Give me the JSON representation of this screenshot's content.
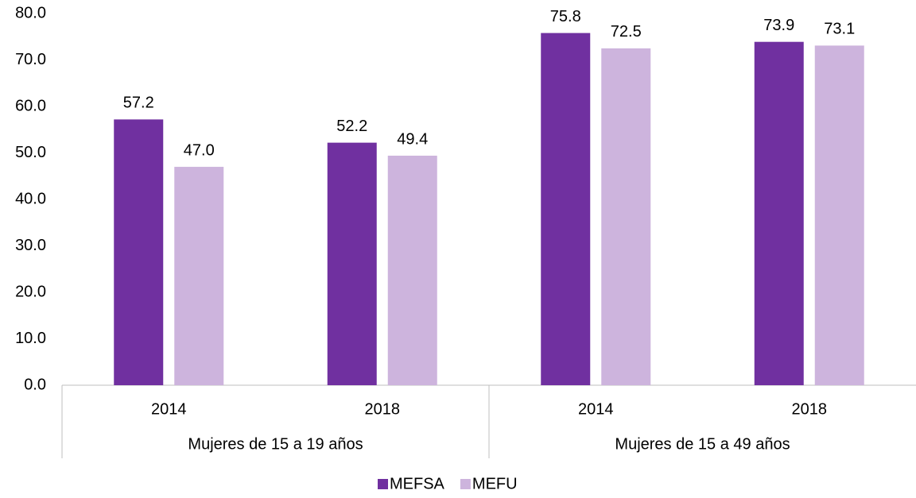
{
  "chart_data": {
    "type": "bar",
    "groups": [
      {
        "name": "Mujeres de 15 a 19 años",
        "categories": [
          "2014",
          "2018"
        ]
      },
      {
        "name": "Mujeres de 15 a 49 años",
        "categories": [
          "2014",
          "2018"
        ]
      }
    ],
    "series": [
      {
        "name": "MEFSA",
        "color": "#7030a0",
        "values": [
          57.2,
          52.2,
          75.8,
          73.9
        ],
        "value_labels": [
          "57.2",
          "52.2",
          "75.8",
          "73.9"
        ]
      },
      {
        "name": "MEFU",
        "color": "#cdb4dd",
        "values": [
          47.0,
          49.4,
          72.5,
          73.1
        ],
        "value_labels": [
          "47.0",
          "49.4",
          "72.5",
          "73.1"
        ]
      }
    ],
    "ylim": [
      0,
      80
    ],
    "yticks": [
      {
        "value": 0,
        "label": "0.0"
      },
      {
        "value": 10,
        "label": "10.0"
      },
      {
        "value": 20,
        "label": "20.0"
      },
      {
        "value": 30,
        "label": "30.0"
      },
      {
        "value": 40,
        "label": "40.0"
      },
      {
        "value": 50,
        "label": "50.0"
      },
      {
        "value": 60,
        "label": "60.0"
      },
      {
        "value": 70,
        "label": "70.0"
      },
      {
        "value": 80,
        "label": "80.0"
      }
    ],
    "grid": false,
    "legend": "bottom"
  }
}
